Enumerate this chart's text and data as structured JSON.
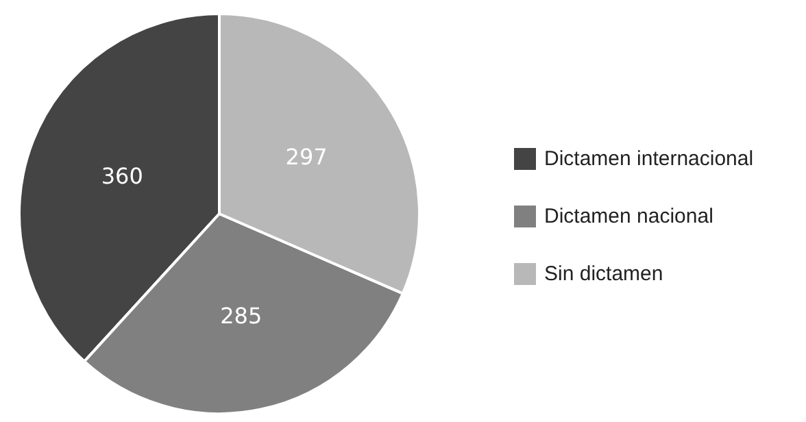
{
  "chart_data": {
    "type": "pie",
    "categories": [
      "Dictamen internacional",
      "Dictamen nacional",
      "Sin dictamen"
    ],
    "values": [
      360,
      285,
      297
    ],
    "colors": [
      "#444444",
      "#808080",
      "#b8b8b8"
    ],
    "data_labels": true,
    "legend": "right"
  }
}
